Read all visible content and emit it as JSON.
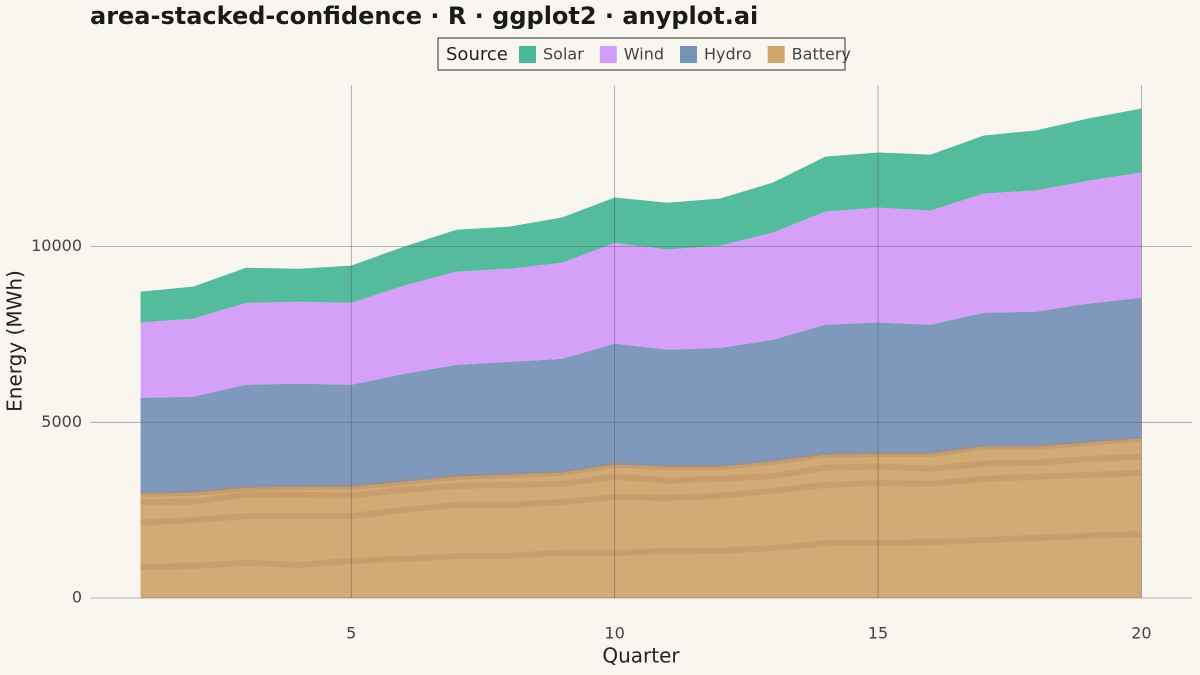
{
  "chart_data": {
    "type": "area",
    "title": "area-stacked-confidence · R · ggplot2 · anyplot.ai",
    "x_label": "Quarter",
    "y_label": "Energy (MWh)",
    "legend_title": "Source",
    "stacked": true,
    "grid": true,
    "x": [
      1,
      2,
      3,
      4,
      5,
      6,
      7,
      8,
      9,
      10,
      11,
      12,
      13,
      14,
      15,
      16,
      17,
      18,
      19,
      20
    ],
    "series": [
      {
        "name": "Solar",
        "color": "#4bb797",
        "values": [
          880,
          910,
          1000,
          940,
          1060,
          1110,
          1190,
          1200,
          1290,
          1290,
          1330,
          1340,
          1420,
          1560,
          1570,
          1590,
          1650,
          1710,
          1770,
          1820
        ]
      },
      {
        "name": "Wind",
        "color": "#d39cf8",
        "values": [
          2140,
          2220,
          2330,
          2330,
          2330,
          2510,
          2650,
          2650,
          2730,
          2870,
          2850,
          2910,
          3050,
          3220,
          3270,
          3250,
          3390,
          3450,
          3500,
          3560
        ]
      },
      {
        "name": "Hydro",
        "color": "#7893b9",
        "values": [
          2740,
          2740,
          2940,
          2940,
          2910,
          3080,
          3190,
          3220,
          3250,
          3450,
          3340,
          3390,
          3470,
          3710,
          3740,
          3680,
          3820,
          3850,
          3960,
          4020
        ]
      },
      {
        "name": "Battery",
        "color": "#cfa56e",
        "values": [
          2960,
          2990,
          3130,
          3160,
          3160,
          3300,
          3450,
          3500,
          3560,
          3790,
          3730,
          3730,
          3880,
          4070,
          4100,
          4100,
          4300,
          4300,
          4420,
          4530
        ]
      }
    ],
    "xlim": [
      0.04,
      20.96
    ],
    "xticks": [
      5,
      10,
      15,
      20
    ],
    "ylim": [
      0,
      14600
    ],
    "yticks": [
      0,
      5000,
      10000
    ]
  }
}
